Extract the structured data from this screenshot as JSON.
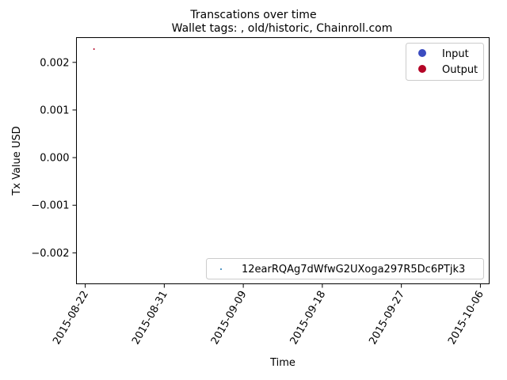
{
  "chart_data": {
    "type": "scatter",
    "title": "Transcations over time",
    "subtitle": "Wallet tags: , old/historic, Chainroll.com",
    "xlabel": "Time",
    "ylabel": "Tx Value USD",
    "x_ticks": [
      "2015-08-22",
      "2015-08-31",
      "2015-09-09",
      "2015-09-18",
      "2015-09-27",
      "2015-10-06"
    ],
    "xlim": [
      "2015-08-21",
      "2015-10-07"
    ],
    "y_ticks": [
      "0.002",
      "0.001",
      "0.000",
      "−0.001",
      "−0.002"
    ],
    "y_tick_values": [
      0.002,
      0.001,
      0.0,
      -0.001,
      -0.002
    ],
    "ylim": [
      -0.00265,
      0.00252
    ],
    "grid": false,
    "legend_type": {
      "placement": "upper right",
      "entries": [
        {
          "label": "Input",
          "color": "#3b4cc0"
        },
        {
          "label": "Output",
          "color": "#b40426"
        }
      ]
    },
    "legend_series": {
      "placement": "lower right",
      "entries": [
        {
          "label": "12earRQAg7dWfwG2UXoga297R5Dc6PTjk3",
          "color": "#1f77b4"
        }
      ]
    },
    "points": [
      {
        "x": "2015-08-23",
        "y": 0.00228,
        "type": "Output",
        "color": "#b40426"
      }
    ]
  }
}
